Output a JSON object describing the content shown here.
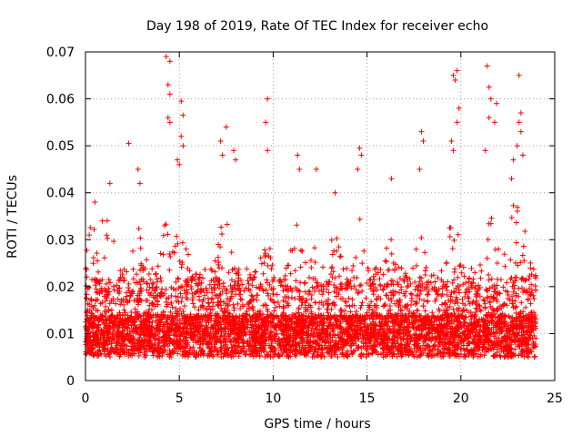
{
  "chart_data": {
    "type": "scatter",
    "title": "Day 198 of 2019, Rate Of TEC Index for receiver echo",
    "xlabel": "GPS time / hours",
    "ylabel": "ROTI / TECUs",
    "xlim": [
      0,
      25
    ],
    "ylim": [
      0,
      0.07
    ],
    "xticks": [
      "0",
      "5",
      "10",
      "15",
      "20",
      "25"
    ],
    "yticks": [
      "0",
      "0.01",
      "0.02",
      "0.03",
      "0.04",
      "0.05",
      "0.06",
      "0.07"
    ],
    "grid": true,
    "legend": "none",
    "marker": "plus",
    "color": "#ff0000",
    "x_range_of_points": [
      0,
      24
    ],
    "series": [
      {
        "name": "",
        "points": [
          [
            0.2,
            0.031
          ],
          [
            0.5,
            0.038
          ],
          [
            0.9,
            0.034
          ],
          [
            1.3,
            0.042
          ],
          [
            2.3,
            0.0505
          ],
          [
            2.8,
            0.045
          ],
          [
            2.9,
            0.042
          ],
          [
            4.3,
            0.069
          ],
          [
            4.5,
            0.068
          ],
          [
            4.4,
            0.063
          ],
          [
            4.5,
            0.061
          ],
          [
            4.4,
            0.056
          ],
          [
            4.5,
            0.055
          ],
          [
            4.9,
            0.047
          ],
          [
            5.1,
            0.0595
          ],
          [
            5.2,
            0.0565
          ],
          [
            5.1,
            0.052
          ],
          [
            5.2,
            0.05
          ],
          [
            5.0,
            0.046
          ],
          [
            7.2,
            0.051
          ],
          [
            7.5,
            0.054
          ],
          [
            7.3,
            0.048
          ],
          [
            7.9,
            0.049
          ],
          [
            8.0,
            0.047
          ],
          [
            9.7,
            0.06
          ],
          [
            9.6,
            0.055
          ],
          [
            9.7,
            0.049
          ],
          [
            11.3,
            0.048
          ],
          [
            11.4,
            0.045
          ],
          [
            12.3,
            0.045
          ],
          [
            13.3,
            0.04
          ],
          [
            14.6,
            0.0495
          ],
          [
            14.7,
            0.048
          ],
          [
            14.5,
            0.045
          ],
          [
            16.3,
            0.043
          ],
          [
            17.9,
            0.053
          ],
          [
            18.0,
            0.051
          ],
          [
            17.8,
            0.045
          ],
          [
            19.6,
            0.065
          ],
          [
            19.7,
            0.064
          ],
          [
            19.8,
            0.066
          ],
          [
            19.9,
            0.058
          ],
          [
            19.8,
            0.055
          ],
          [
            19.5,
            0.051
          ],
          [
            19.6,
            0.049
          ],
          [
            21.4,
            0.067
          ],
          [
            21.5,
            0.0625
          ],
          [
            21.6,
            0.06
          ],
          [
            21.5,
            0.056
          ],
          [
            21.9,
            0.059
          ],
          [
            21.8,
            0.055
          ],
          [
            21.3,
            0.049
          ],
          [
            22.8,
            0.047
          ],
          [
            23.1,
            0.065
          ],
          [
            23.2,
            0.057
          ],
          [
            23.1,
            0.055
          ],
          [
            23.2,
            0.053
          ],
          [
            23.0,
            0.05
          ],
          [
            23.3,
            0.048
          ],
          [
            22.7,
            0.043
          ]
        ]
      }
    ]
  }
}
